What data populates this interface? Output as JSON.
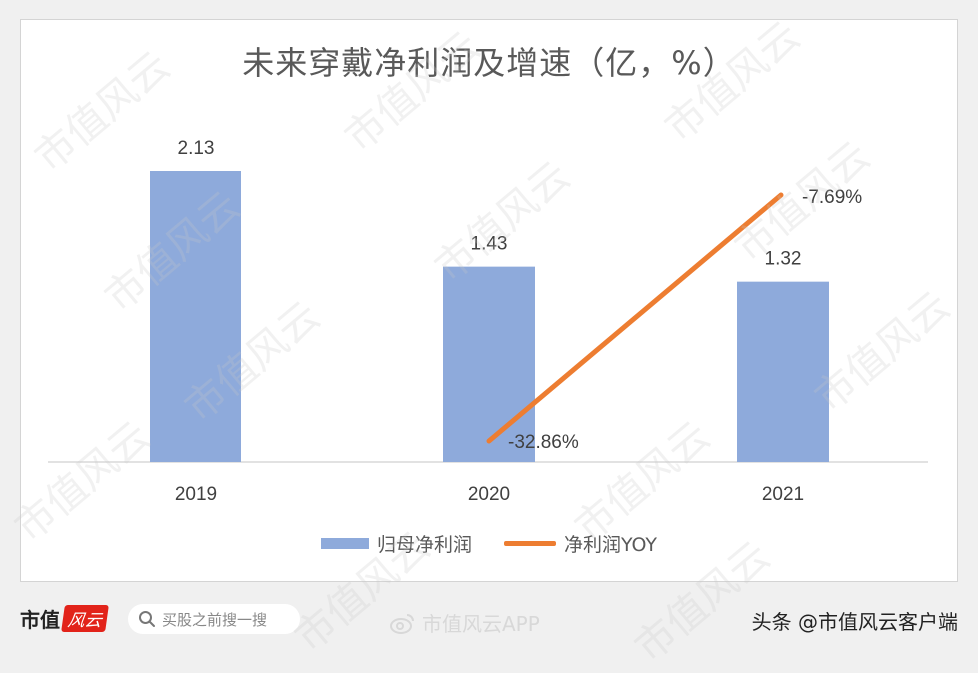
{
  "chart_data": {
    "type": "bar",
    "title": "未来穿戴净利润及增速（亿，%）",
    "categories": [
      "2019",
      "2020",
      "2021"
    ],
    "series": [
      {
        "name": "归母净利润",
        "type": "bar",
        "values": [
          2.13,
          1.43,
          1.32
        ],
        "labels": [
          "2.13",
          "1.43",
          "1.32"
        ],
        "color": "#8eaadb"
      },
      {
        "name": "净利润YOY",
        "type": "line",
        "values": [
          null,
          -32.86,
          -7.69
        ],
        "labels": [
          "",
          "-32.86%",
          "-7.69%"
        ],
        "color": "#ed7d31"
      }
    ],
    "xlabel": "",
    "ylabel": "",
    "ylim": [
      0,
      2.5
    ],
    "grid": false,
    "legend_position": "bottom",
    "axes_visible": false
  },
  "legend": {
    "bar_label": "归母净利润",
    "line_label": "净利润YOY"
  },
  "footer": {
    "brand_text": "市值",
    "brand_logo": "风云",
    "search_placeholder": "买股之前搜一搜",
    "weibo_text": "市值风云APP",
    "toutiao_text": "头条 @市值风云客户端"
  },
  "watermark": "市值风云"
}
